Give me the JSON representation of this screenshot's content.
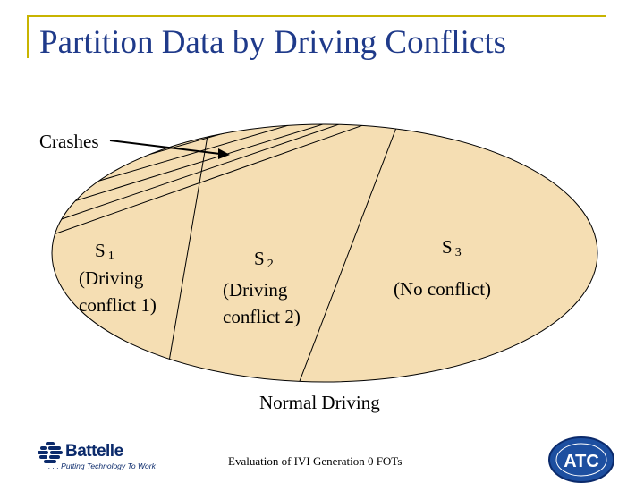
{
  "title": "Partition Data by Driving Conflicts",
  "diagram": {
    "crashes_label": "Crashes",
    "s1": {
      "symbol": "S",
      "index": "1",
      "line1": "(Driving",
      "line2": "conflict 1)"
    },
    "s2": {
      "symbol": "S",
      "index": "2",
      "line1": "(Driving",
      "line2": "conflict 2)"
    },
    "s3": {
      "symbol": "S",
      "index": "3",
      "desc": "(No conflict)"
    },
    "normal_label": "Normal Driving",
    "fill_color": "#f5deb3"
  },
  "footer": {
    "text": "Evaluation of IVI Generation 0 FOTs",
    "logo_left": {
      "name": "Battelle",
      "tagline": ". . . Putting Technology To Work"
    },
    "logo_right": {
      "text": "ATC"
    }
  }
}
